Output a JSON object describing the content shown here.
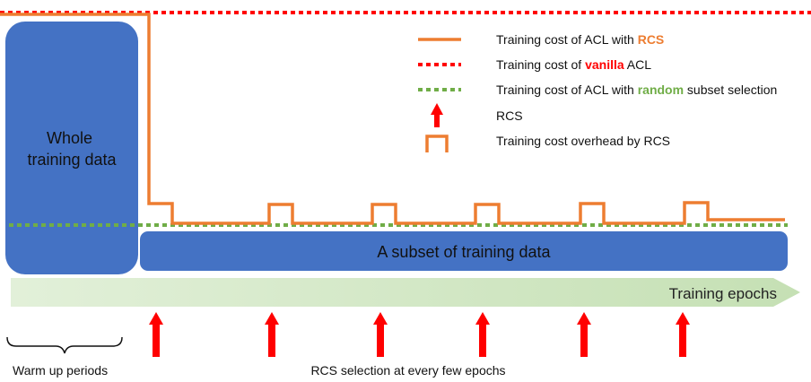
{
  "blocks": {
    "whole_line1": "Whole",
    "whole_line2": "training data",
    "subset": "A subset of training data"
  },
  "timeline": {
    "label": "Training epochs"
  },
  "bottom": {
    "warmup": "Warm up periods",
    "rcs_selection": "RCS selection at every few epochs"
  },
  "legend": {
    "rcs": {
      "prefix": "Training cost of ACL with ",
      "highlight": "RCS",
      "suffix": ""
    },
    "vanilla": {
      "prefix": "Training cost of ",
      "highlight": "vanilla",
      "suffix": " ACL"
    },
    "random": {
      "prefix": "Training cost of ACL with ",
      "highlight": "random",
      "suffix": " subset selection"
    },
    "arrow": "RCS",
    "overhead": "Training cost overhead by RCS"
  },
  "colors": {
    "orange": "#ED7D31",
    "red": "#FF0000",
    "green": "#70AD47",
    "blue": "#4472C4",
    "timeline": "#C5E0B4"
  }
}
